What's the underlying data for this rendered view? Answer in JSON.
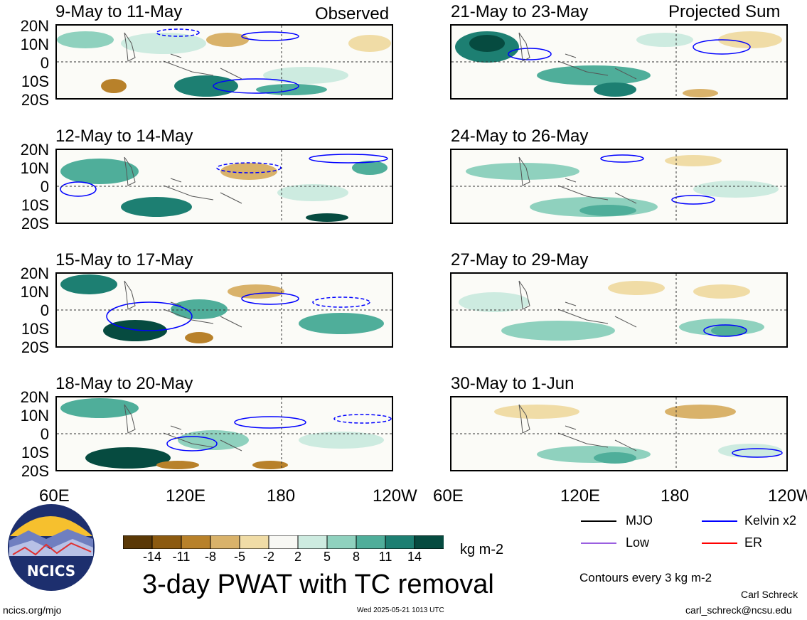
{
  "headers": {
    "left": "Observed",
    "right": "Projected Sum"
  },
  "panels": {
    "left": [
      "9-May to 11-May",
      "12-May to 14-May",
      "15-May to 17-May",
      "18-May to 20-May"
    ],
    "right": [
      "21-May to 23-May",
      "24-May to 26-May",
      "27-May to 29-May",
      "30-May to 1-Jun"
    ]
  },
  "y_ticks": [
    "20N",
    "10N",
    "0",
    "10S",
    "20S"
  ],
  "x_ticks": [
    "60E",
    "120E",
    "180",
    "120W"
  ],
  "colorbar": {
    "labels": [
      "-14",
      "-11",
      "-8",
      "-5",
      "-2",
      "2",
      "5",
      "8",
      "11",
      "14"
    ],
    "colors": [
      "#5a3806",
      "#8c5a10",
      "#b8812a",
      "#d9b26a",
      "#f0dca6",
      "#f8f8f4",
      "#cdebe0",
      "#8fd1be",
      "#4fae9a",
      "#1d7f72",
      "#064b40"
    ],
    "unit": "kg m-2"
  },
  "main_title": "3-day PWAT with TC removal",
  "legend": {
    "items": [
      {
        "label": "MJO",
        "color": "#000000"
      },
      {
        "label": "Kelvin x2",
        "color": "#0000ff"
      },
      {
        "label": "Low",
        "color": "#9a5fe0"
      },
      {
        "label": "ER",
        "color": "#ff0000"
      }
    ],
    "contours": "Contours every 3 kg m-2"
  },
  "logo_text": "NCICS",
  "footer": {
    "url": "ncics.org/mjo",
    "timestamp": "Wed 2025-05-21 1013 UTC",
    "author": "Carl Schreck",
    "email": "carl_schreck@ncsu.edu"
  }
}
